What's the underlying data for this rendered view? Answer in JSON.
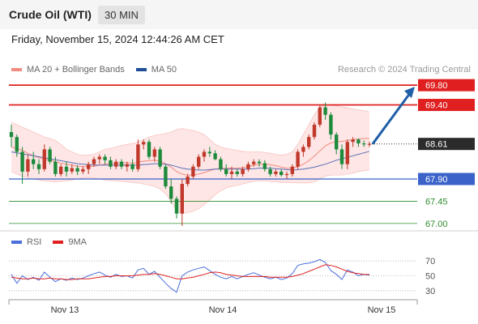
{
  "header": {
    "title": "Crude Oil (WTI)",
    "timeframe": "30 MIN"
  },
  "datetime": "Friday, November 15, 2024 12:44:26 AM CET",
  "credit": "Research © 2024 Trading Central",
  "chart_data": [
    {
      "type": "candlestick",
      "legend": [
        {
          "name": "MA 20 + Bollinger Bands",
          "color": "#f28b82"
        },
        {
          "name": "MA 50",
          "color": "#1f4e96"
        }
      ],
      "x_ticks": [
        "Nov 13",
        "Nov 14",
        "Nov 15"
      ],
      "ylim": [
        66.85,
        69.95
      ],
      "current_price": {
        "label": "68.61",
        "value": 68.61
      },
      "levels": [
        {
          "label": "69.80",
          "value": 69.8,
          "kind": "resistance",
          "color": "#e02020"
        },
        {
          "label": "69.40",
          "value": 69.4,
          "kind": "resistance",
          "color": "#e02020"
        },
        {
          "label": "67.90",
          "value": 67.9,
          "kind": "pivot",
          "color": "#3a62c9"
        },
        {
          "label": "67.45",
          "value": 67.45,
          "kind": "support",
          "color": "#2e8b2e"
        },
        {
          "label": "67.00",
          "value": 67.0,
          "kind": "support",
          "color": "#2e8b2e"
        }
      ],
      "ohlc": [
        [
          68.85,
          69.0,
          68.55,
          68.75
        ],
        [
          68.75,
          68.8,
          68.35,
          68.45
        ],
        [
          68.45,
          68.55,
          67.8,
          68.05
        ],
        [
          68.05,
          68.4,
          67.95,
          68.3
        ],
        [
          68.3,
          68.45,
          68.1,
          68.2
        ],
        [
          68.2,
          68.3,
          68.0,
          68.1
        ],
        [
          68.1,
          68.6,
          68.05,
          68.5
        ],
        [
          68.5,
          68.55,
          68.2,
          68.25
        ],
        [
          68.25,
          68.35,
          67.95,
          68.0
        ],
        [
          68.0,
          68.2,
          67.95,
          68.15
        ],
        [
          68.15,
          68.25,
          67.95,
          68.05
        ],
        [
          68.05,
          68.2,
          68.0,
          68.12
        ],
        [
          68.12,
          68.18,
          67.98,
          68.05
        ],
        [
          68.05,
          68.15,
          68.0,
          68.1
        ],
        [
          68.1,
          68.25,
          68.0,
          68.2
        ],
        [
          68.2,
          68.35,
          68.15,
          68.3
        ],
        [
          68.3,
          68.4,
          68.2,
          68.35
        ],
        [
          68.35,
          68.4,
          68.2,
          68.28
        ],
        [
          68.28,
          68.35,
          68.1,
          68.15
        ],
        [
          68.15,
          68.3,
          68.1,
          68.25
        ],
        [
          68.25,
          68.3,
          68.1,
          68.15
        ],
        [
          68.15,
          68.25,
          68.05,
          68.2
        ],
        [
          68.2,
          68.3,
          68.05,
          68.1
        ],
        [
          68.1,
          68.7,
          68.05,
          68.6
        ],
        [
          68.6,
          68.7,
          68.5,
          68.65
        ],
        [
          68.65,
          68.7,
          68.3,
          68.35
        ],
        [
          68.35,
          68.55,
          68.25,
          68.5
        ],
        [
          68.5,
          68.55,
          68.1,
          68.15
        ],
        [
          68.15,
          68.2,
          67.7,
          67.75
        ],
        [
          67.75,
          67.9,
          67.4,
          67.5
        ],
        [
          67.5,
          67.55,
          67.1,
          67.2
        ],
        [
          67.2,
          67.9,
          66.95,
          67.8
        ],
        [
          67.8,
          68.0,
          67.75,
          67.95
        ],
        [
          67.95,
          68.2,
          67.9,
          68.15
        ],
        [
          68.15,
          68.4,
          68.1,
          68.35
        ],
        [
          68.35,
          68.5,
          68.25,
          68.45
        ],
        [
          68.45,
          68.55,
          68.35,
          68.42
        ],
        [
          68.42,
          68.48,
          68.28,
          68.3
        ],
        [
          68.3,
          68.35,
          68.05,
          68.1
        ],
        [
          68.1,
          68.2,
          67.95,
          68.0
        ],
        [
          68.0,
          68.15,
          67.9,
          68.05
        ],
        [
          68.05,
          68.1,
          67.95,
          68.0
        ],
        [
          68.0,
          68.15,
          67.95,
          68.1
        ],
        [
          68.1,
          68.25,
          68.05,
          68.2
        ],
        [
          68.2,
          68.3,
          68.15,
          68.25
        ],
        [
          68.25,
          68.3,
          68.15,
          68.22
        ],
        [
          68.22,
          68.28,
          68.05,
          68.1
        ],
        [
          68.1,
          68.15,
          67.95,
          68.0
        ],
        [
          68.0,
          68.1,
          67.95,
          68.05
        ],
        [
          68.05,
          68.1,
          67.95,
          67.98
        ],
        [
          67.98,
          68.05,
          67.9,
          68.0
        ],
        [
          68.0,
          68.2,
          67.95,
          68.15
        ],
        [
          68.15,
          68.5,
          68.1,
          68.45
        ],
        [
          68.45,
          68.6,
          68.35,
          68.55
        ],
        [
          68.55,
          68.8,
          68.5,
          68.75
        ],
        [
          68.75,
          69.05,
          68.7,
          69.0
        ],
        [
          69.0,
          69.4,
          68.95,
          69.35
        ],
        [
          69.35,
          69.45,
          69.1,
          69.2
        ],
        [
          69.2,
          69.25,
          68.7,
          68.8
        ],
        [
          68.8,
          68.85,
          68.4,
          68.5
        ],
        [
          68.5,
          68.6,
          68.1,
          68.2
        ],
        [
          68.2,
          68.7,
          68.1,
          68.65
        ],
        [
          68.65,
          68.75,
          68.55,
          68.7
        ],
        [
          68.7,
          68.72,
          68.55,
          68.62
        ],
        [
          68.62,
          68.68,
          68.55,
          68.6
        ],
        [
          68.6,
          68.66,
          68.55,
          68.61
        ]
      ],
      "ma20": [
        68.55,
        68.52,
        68.48,
        68.42,
        68.37,
        68.33,
        68.3,
        68.28,
        68.25,
        68.22,
        68.2,
        68.18,
        68.16,
        68.15,
        68.15,
        68.16,
        68.18,
        68.2,
        68.21,
        68.22,
        68.23,
        68.23,
        68.22,
        68.24,
        68.26,
        68.27,
        68.28,
        68.26,
        68.21,
        68.14,
        68.05,
        68.0,
        67.98,
        67.98,
        68.0,
        68.03,
        68.07,
        68.1,
        68.12,
        68.12,
        68.12,
        68.12,
        68.13,
        68.15,
        68.18,
        68.2,
        68.2,
        68.19,
        68.17,
        68.14,
        68.12,
        68.12,
        68.15,
        68.2,
        68.27,
        68.36,
        68.47,
        68.57,
        68.63,
        68.66,
        68.66,
        68.68,
        68.7,
        68.71,
        68.72,
        68.72
      ],
      "bb_upper": [
        69.05,
        69.0,
        68.95,
        68.9,
        68.85,
        68.8,
        68.75,
        68.72,
        68.68,
        68.6,
        68.5,
        68.45,
        68.4,
        68.38,
        68.38,
        68.4,
        68.45,
        68.5,
        68.52,
        68.55,
        68.58,
        68.6,
        68.62,
        68.65,
        68.7,
        68.75,
        68.78,
        68.8,
        68.82,
        68.85,
        68.9,
        68.92,
        68.9,
        68.88,
        68.85,
        68.8,
        68.7,
        68.6,
        68.55,
        68.52,
        68.5,
        68.48,
        68.46,
        68.45,
        68.45,
        68.45,
        68.44,
        68.42,
        68.4,
        68.38,
        68.4,
        68.45,
        68.6,
        68.8,
        69.0,
        69.2,
        69.35,
        69.4,
        69.4,
        69.38,
        69.36,
        69.34,
        69.32,
        69.3,
        69.28,
        69.26
      ],
      "bb_lower": [
        68.05,
        68.0,
        67.95,
        67.92,
        67.9,
        67.88,
        67.86,
        67.85,
        67.84,
        67.85,
        67.86,
        67.88,
        67.9,
        67.92,
        67.93,
        67.92,
        67.9,
        67.88,
        67.87,
        67.86,
        67.85,
        67.84,
        67.83,
        67.82,
        67.8,
        67.78,
        67.75,
        67.7,
        67.6,
        67.45,
        67.25,
        67.2,
        67.22,
        67.25,
        67.3,
        67.38,
        67.48,
        67.58,
        67.66,
        67.72,
        67.75,
        67.77,
        67.8,
        67.83,
        67.85,
        67.86,
        67.86,
        67.85,
        67.84,
        67.83,
        67.83,
        67.83,
        67.82,
        67.82,
        67.82,
        67.84,
        67.9,
        67.96,
        67.98,
        67.98,
        67.98,
        68.0,
        68.02,
        68.05,
        68.07,
        68.08
      ],
      "ma50": [
        68.45,
        68.43,
        68.41,
        68.39,
        68.37,
        68.35,
        68.33,
        68.31,
        68.29,
        68.27,
        68.25,
        68.23,
        68.21,
        68.2,
        68.19,
        68.18,
        68.18,
        68.18,
        68.18,
        68.18,
        68.18,
        68.18,
        68.18,
        68.18,
        68.19,
        68.2,
        68.21,
        68.21,
        68.2,
        68.18,
        68.15,
        68.12,
        68.1,
        68.09,
        68.08,
        68.08,
        68.09,
        68.1,
        68.1,
        68.1,
        68.1,
        68.1,
        68.1,
        68.1,
        68.11,
        68.12,
        68.12,
        68.12,
        68.11,
        68.1,
        68.09,
        68.08,
        68.09,
        68.1,
        68.12,
        68.14,
        68.17,
        68.2,
        68.24,
        68.28,
        68.31,
        68.34,
        68.37,
        68.4,
        68.43,
        68.46
      ],
      "forecast": {
        "from": 68.61,
        "to": 69.8
      }
    },
    {
      "type": "line",
      "legend": [
        {
          "name": "RSI",
          "color": "#4a6fdc"
        },
        {
          "name": "9MA",
          "color": "#e02020"
        }
      ],
      "ylim": [
        20,
        80
      ],
      "y_ticks": [
        {
          "label": "70",
          "value": 70
        },
        {
          "label": "50",
          "value": 50
        },
        {
          "label": "30",
          "value": 30
        }
      ],
      "rsi": [
        52,
        40,
        50,
        45,
        48,
        44,
        55,
        48,
        42,
        46,
        44,
        47,
        45,
        47,
        50,
        53,
        55,
        51,
        48,
        52,
        49,
        50,
        47,
        58,
        60,
        52,
        56,
        48,
        40,
        33,
        28,
        50,
        55,
        58,
        60,
        62,
        57,
        52,
        48,
        46,
        49,
        46,
        49,
        52,
        54,
        51,
        48,
        46,
        48,
        45,
        47,
        53,
        64,
        66,
        67,
        69,
        72,
        68,
        57,
        52,
        45,
        58,
        55,
        50,
        52,
        51
      ],
      "ma9": [
        48,
        47,
        46,
        46,
        47,
        46,
        46,
        47,
        46,
        46,
        45,
        45,
        46,
        46,
        46,
        47,
        48,
        49,
        49,
        50,
        50,
        50,
        50,
        51,
        52,
        52,
        53,
        52,
        50,
        48,
        46,
        46,
        47,
        48,
        50,
        52,
        54,
        55,
        54,
        52,
        51,
        50,
        49,
        49,
        49,
        49,
        49,
        48,
        48,
        48,
        48,
        49,
        51,
        53,
        56,
        59,
        62,
        65,
        64,
        62,
        59,
        56,
        54,
        53,
        52,
        52
      ]
    }
  ]
}
